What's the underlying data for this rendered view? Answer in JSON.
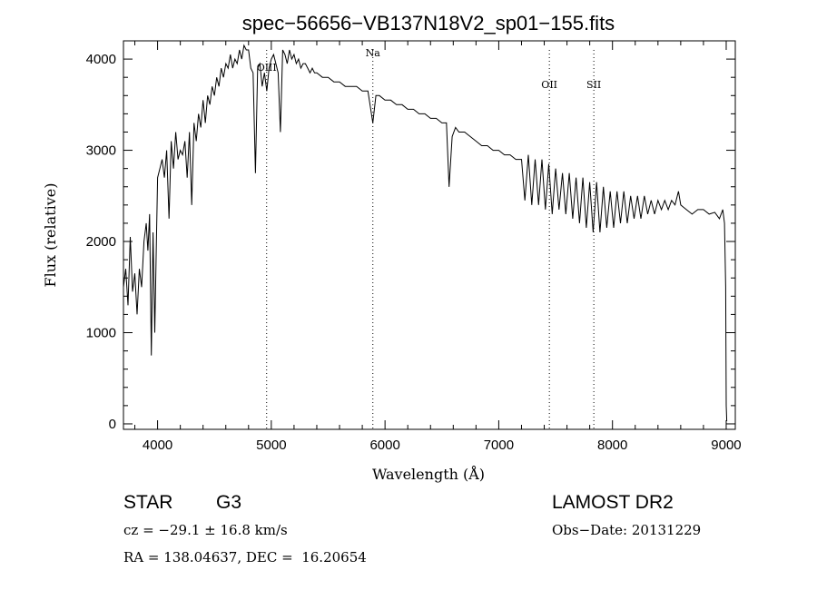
{
  "chart_data": {
    "type": "line",
    "title": "spec−56656−VB137N18V2_sp01−155.fits",
    "xlabel": "Wavelength (Å)",
    "ylabel": "Flux (relative)",
    "xlim": [
      3700,
      9080
    ],
    "ylim": [
      -60,
      4200
    ],
    "xticks": [
      4000,
      5000,
      6000,
      7000,
      8000,
      9000
    ],
    "yticks": [
      0,
      1000,
      2000,
      3000,
      4000
    ],
    "grid": false,
    "line_markers": [
      {
        "label": "OIII",
        "x": 4959
      },
      {
        "label": "Na",
        "x": 5893
      },
      {
        "label": "OII",
        "x": 7445
      },
      {
        "label": "SII",
        "x": 7836
      }
    ],
    "series": [
      {
        "x": [
          3700,
          3720,
          3740,
          3760,
          3780,
          3800,
          3820,
          3840,
          3860,
          3880,
          3900,
          3915,
          3930,
          3945,
          3960,
          3975,
          3990,
          4000,
          4020,
          4040,
          4060,
          4080,
          4101,
          4120,
          4140,
          4160,
          4180,
          4200,
          4220,
          4240,
          4260,
          4280,
          4300,
          4320,
          4340,
          4360,
          4380,
          4400,
          4420,
          4440,
          4460,
          4480,
          4500,
          4520,
          4540,
          4560,
          4580,
          4600,
          4620,
          4640,
          4660,
          4680,
          4700,
          4720,
          4740,
          4760,
          4780,
          4800,
          4820,
          4840,
          4861,
          4880,
          4900,
          4920,
          4940,
          4960,
          4980,
          5000,
          5020,
          5040,
          5060,
          5080,
          5100,
          5120,
          5140,
          5160,
          5180,
          5200,
          5220,
          5240,
          5260,
          5280,
          5300,
          5320,
          5340,
          5360,
          5380,
          5400,
          5450,
          5500,
          5550,
          5600,
          5650,
          5700,
          5750,
          5800,
          5850,
          5893,
          5920,
          5950,
          6000,
          6050,
          6100,
          6150,
          6200,
          6250,
          6300,
          6350,
          6400,
          6450,
          6500,
          6540,
          6563,
          6590,
          6620,
          6650,
          6700,
          6750,
          6800,
          6850,
          6900,
          6950,
          7000,
          7050,
          7100,
          7150,
          7200,
          7230,
          7260,
          7290,
          7320,
          7350,
          7380,
          7410,
          7440,
          7470,
          7500,
          7530,
          7560,
          7590,
          7620,
          7650,
          7680,
          7710,
          7740,
          7770,
          7800,
          7830,
          7860,
          7890,
          7920,
          7950,
          7980,
          8010,
          8040,
          8070,
          8100,
          8130,
          8160,
          8190,
          8220,
          8250,
          8280,
          8310,
          8340,
          8370,
          8400,
          8430,
          8460,
          8490,
          8520,
          8550,
          8580,
          8600,
          8620,
          8650,
          8700,
          8750,
          8800,
          8850,
          8900,
          8940,
          8970,
          8985,
          8995,
          9000,
          9005
        ],
        "y": [
          1500,
          1700,
          1300,
          2050,
          1450,
          1650,
          1200,
          1700,
          1500,
          2000,
          2200,
          1900,
          2300,
          750,
          2100,
          1000,
          2000,
          2700,
          2800,
          2900,
          2700,
          3000,
          2250,
          3100,
          2800,
          3200,
          2900,
          3000,
          2950,
          3100,
          2700,
          3200,
          2400,
          3300,
          3100,
          3400,
          3250,
          3550,
          3300,
          3600,
          3500,
          3700,
          3600,
          3800,
          3700,
          3900,
          3800,
          3950,
          3900,
          4050,
          3900,
          4000,
          3950,
          4100,
          4000,
          4150,
          4100,
          4100,
          3900,
          3850,
          2750,
          3900,
          3950,
          3700,
          3850,
          3650,
          3900,
          4000,
          4050,
          3950,
          3850,
          3200,
          4100,
          4050,
          3950,
          4100,
          4000,
          4050,
          3950,
          4000,
          3900,
          3950,
          3950,
          3900,
          3850,
          3900,
          3850,
          3850,
          3800,
          3800,
          3750,
          3750,
          3700,
          3700,
          3700,
          3650,
          3650,
          3300,
          3600,
          3600,
          3550,
          3550,
          3500,
          3500,
          3450,
          3450,
          3400,
          3400,
          3350,
          3350,
          3300,
          3300,
          2600,
          3150,
          3250,
          3200,
          3200,
          3150,
          3100,
          3050,
          3050,
          3000,
          3000,
          2950,
          2950,
          2900,
          2900,
          2450,
          2950,
          2400,
          2900,
          2400,
          2900,
          2350,
          2850,
          2300,
          2800,
          2350,
          2750,
          2300,
          2750,
          2250,
          2700,
          2200,
          2700,
          2150,
          2650,
          2100,
          2650,
          2100,
          2600,
          2150,
          2550,
          2150,
          2550,
          2200,
          2550,
          2200,
          2500,
          2250,
          2500,
          2250,
          2500,
          2300,
          2450,
          2300,
          2450,
          2350,
          2450,
          2350,
          2450,
          2400,
          2550,
          2400,
          2380,
          2350,
          2300,
          2350,
          2350,
          2300,
          2320,
          2250,
          2350,
          2200,
          1500,
          200,
          30
        ]
      }
    ]
  },
  "footer": {
    "object_type": "STAR",
    "subclass": "G3",
    "survey": "LAMOST DR2",
    "cz": "cz = −29.1 ± 16.8 km/s",
    "obs_date": "Obs−Date: 20131229",
    "coords": "RA = 138.04637, DEC =  16.20654"
  }
}
